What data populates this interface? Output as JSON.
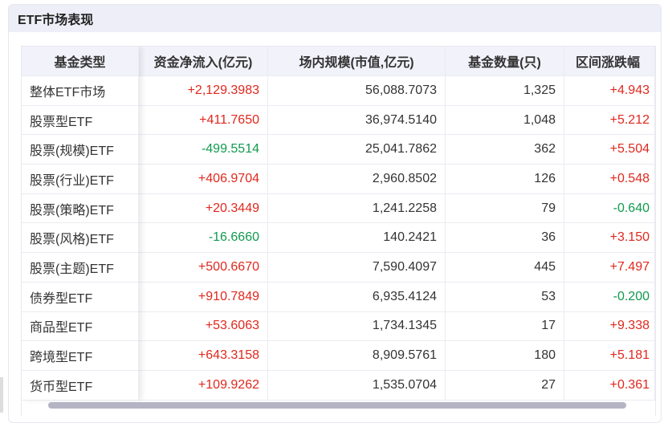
{
  "panel": {
    "title": "ETF市场表现"
  },
  "table": {
    "headers": [
      "基金类型",
      "资金净流入(亿元)",
      "场内规模(市值,亿元)",
      "基金数量(只)",
      "区间涨跌幅"
    ],
    "rows": [
      {
        "type": "整体ETF市场",
        "flow": "+2,129.3983",
        "scale": "56,088.7073",
        "count": "1,325",
        "change": "+4.943"
      },
      {
        "type": "股票型ETF",
        "flow": "+411.7650",
        "scale": "36,974.5140",
        "count": "1,048",
        "change": "+5.212"
      },
      {
        "type": "股票(规模)ETF",
        "flow": "-499.5514",
        "scale": "25,041.7862",
        "count": "362",
        "change": "+5.504"
      },
      {
        "type": "股票(行业)ETF",
        "flow": "+406.9704",
        "scale": "2,960.8502",
        "count": "126",
        "change": "+0.548"
      },
      {
        "type": "股票(策略)ETF",
        "flow": "+20.3449",
        "scale": "1,241.2258",
        "count": "79",
        "change": "-0.640"
      },
      {
        "type": "股票(风格)ETF",
        "flow": "-16.6660",
        "scale": "140.2421",
        "count": "36",
        "change": "+3.150"
      },
      {
        "type": "股票(主题)ETF",
        "flow": "+500.6670",
        "scale": "7,590.4097",
        "count": "445",
        "change": "+7.497"
      },
      {
        "type": "债券型ETF",
        "flow": "+910.7849",
        "scale": "6,935.4124",
        "count": "53",
        "change": "-0.200"
      },
      {
        "type": "商品型ETF",
        "flow": "+53.6063",
        "scale": "1,734.1345",
        "count": "17",
        "change": "+9.338"
      },
      {
        "type": "跨境型ETF",
        "flow": "+643.3158",
        "scale": "8,909.5761",
        "count": "180",
        "change": "+5.181"
      },
      {
        "type": "货币型ETF",
        "flow": "+109.9262",
        "scale": "1,535.0704",
        "count": "27",
        "change": "+0.361"
      }
    ]
  },
  "colors": {
    "up": "#e0281e",
    "down": "#109a4e",
    "header_bg": "#eeeef8"
  }
}
